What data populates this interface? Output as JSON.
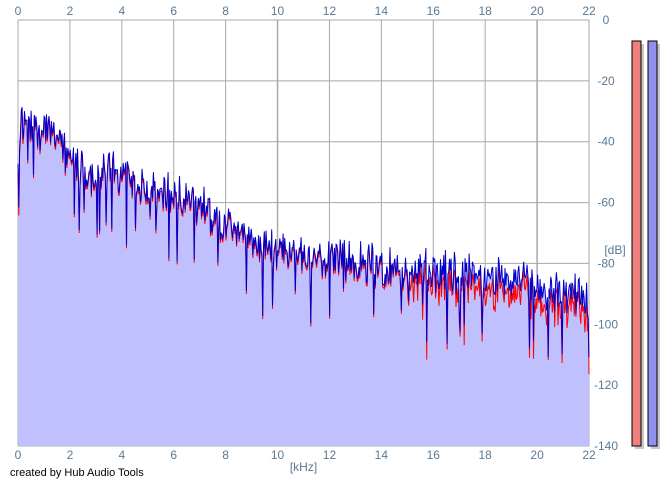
{
  "credit": "created by Hub Audio Tools",
  "colors": {
    "background": "#ffffff",
    "fill": "#c0c0ff",
    "left_channel": "#ff0000",
    "right_channel": "#0000cc",
    "grid": "#a8a8a8",
    "tick_text": "#5a7a96",
    "meter_left": "#f08080",
    "meter_right": "#9090ee"
  },
  "chart_data": {
    "type": "line",
    "title": "",
    "xlabel": "[kHz]",
    "ylabel": "[dB]",
    "xlim": [
      0,
      22
    ],
    "ylim": [
      -140,
      0
    ],
    "x_ticks": [
      0,
      2,
      4,
      6,
      8,
      10,
      12,
      14,
      16,
      18,
      20,
      22
    ],
    "y_ticks": [
      0,
      -20,
      -40,
      -60,
      -80,
      -100,
      -120,
      -140
    ],
    "y_tick_labels": [
      "0",
      "-20",
      "-40",
      "-60",
      "-80",
      "-100",
      "-120",
      "-140"
    ],
    "grid": true,
    "series": [
      {
        "color": "#ff0000",
        "x": [
          0,
          0.1,
          0.3,
          0.5,
          0.8,
          1.0,
          1.3,
          1.6,
          2.0,
          2.5,
          3.0,
          3.5,
          4.0,
          4.5,
          5.0,
          5.5,
          6.0,
          6.5,
          7.0,
          7.5,
          8.0,
          8.5,
          9.0,
          9.5,
          10.0,
          10.5,
          11.0,
          11.5,
          12.0,
          12.5,
          13.0,
          13.5,
          14.0,
          14.5,
          15.0,
          15.5,
          16.0,
          16.5,
          17.0,
          17.5,
          18.0,
          18.5,
          19.0,
          19.5,
          20.0,
          20.5,
          21.0,
          21.5,
          22.0
        ],
        "values": [
          -48,
          -30,
          -30,
          -31,
          -33,
          -28,
          -32,
          -38,
          -41,
          -46,
          -48,
          -46,
          -46,
          -50,
          -51,
          -52,
          -54,
          -56,
          -57,
          -61,
          -62,
          -66,
          -68,
          -70,
          -71,
          -72,
          -72,
          -73,
          -74,
          -75,
          -76,
          -76,
          -77,
          -77,
          -78,
          -78,
          -79,
          -79,
          -80,
          -80,
          -80,
          -80,
          -81,
          -82,
          -83,
          -84,
          -85,
          -87,
          -90
        ]
      },
      {
        "color": "#0000cc",
        "x": [
          0,
          0.1,
          0.3,
          0.5,
          0.8,
          1.0,
          1.3,
          1.6,
          2.0,
          2.5,
          3.0,
          3.5,
          4.0,
          4.5,
          5.0,
          5.5,
          6.0,
          6.5,
          7.0,
          7.5,
          8.0,
          8.5,
          9.0,
          9.5,
          10.0,
          10.5,
          11.0,
          11.5,
          12.0,
          12.5,
          13.0,
          13.5,
          14.0,
          14.5,
          15.0,
          15.5,
          16.0,
          16.5,
          17.0,
          17.5,
          18.0,
          18.5,
          19.0,
          19.5,
          20.0,
          20.5,
          21.0,
          21.5,
          22.0
        ],
        "values": [
          -45,
          -28,
          -29,
          -30,
          -32,
          -27,
          -31,
          -37,
          -40,
          -45,
          -47,
          -45,
          -45,
          -49,
          -50,
          -51,
          -53,
          -55,
          -56,
          -60,
          -61,
          -65,
          -67,
          -69,
          -70,
          -71,
          -71,
          -72,
          -73,
          -74,
          -75,
          -75,
          -76,
          -76,
          -77,
          -77,
          -78,
          -78,
          -79,
          -79,
          -79,
          -79,
          -80,
          -81,
          -82,
          -83,
          -84,
          -86,
          -89
        ]
      }
    ],
    "meters": {
      "left": 0,
      "right": 0
    }
  }
}
